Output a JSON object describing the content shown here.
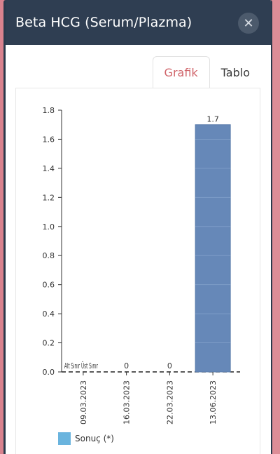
{
  "modal": {
    "title": "Beta HCG (Serum/Plazma)",
    "close_label": "✕"
  },
  "tabs": [
    {
      "label": "Grafik",
      "active": true
    },
    {
      "label": "Tablo",
      "active": false
    }
  ],
  "colors": {
    "bar": "#6688b8",
    "legend": "#6ab4de",
    "accent": "#d0646a"
  },
  "chart_data": {
    "type": "bar",
    "categories": [
      "09.03.2023",
      "16.03.2023",
      "22.03.2023",
      "13.06.2023"
    ],
    "values": [
      0,
      0,
      0,
      1.7
    ],
    "data_labels": [
      "",
      "0",
      "0",
      "1.7"
    ],
    "overlap_label": "Alt Sınır Üst Sınır",
    "yticks": [
      "0.0",
      "0.2",
      "0.4",
      "0.6",
      "0.8",
      "1.0",
      "1.2",
      "1.4",
      "1.6",
      "1.8"
    ],
    "ylim": [
      0,
      1.8
    ],
    "series": [
      {
        "name": "Sonuç (*)",
        "values": [
          0,
          0,
          0,
          1.7
        ]
      }
    ]
  }
}
